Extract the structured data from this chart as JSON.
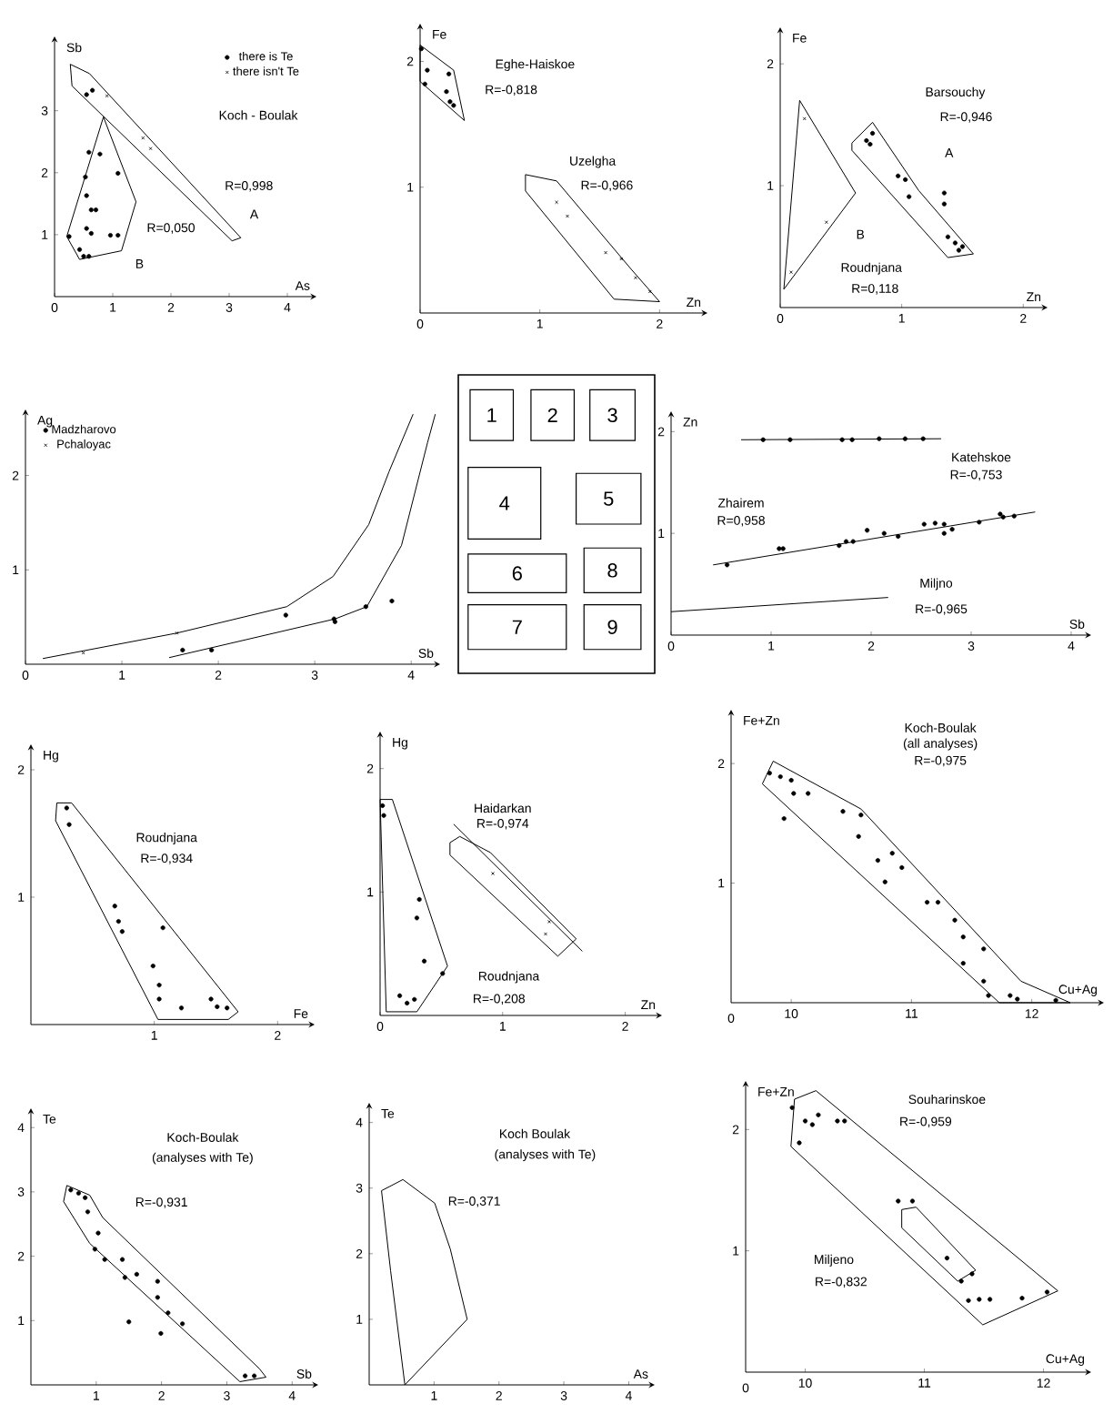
{
  "chart_data": [
    {
      "type": "scatter",
      "xlabel": "As",
      "ylabel": "Sb",
      "xlim": [
        0,
        4.5
      ],
      "ylim": [
        0,
        4.2
      ],
      "xticks": [
        0,
        1,
        2,
        3,
        4
      ],
      "yticks": [
        1,
        2,
        3
      ],
      "legend": "top right",
      "annotations": [
        "Koch - Boulak",
        "R=0,998",
        "R=0,050",
        "A",
        "B"
      ],
      "series": [
        {
          "type": "scatter",
          "name": "there is Te",
          "marker": "circle",
          "color": "#000000",
          "x": [
            0.55,
            0.65,
            0.59,
            0.78,
            0.53,
            1.09,
            0.55,
            0.63,
            0.71,
            0.55,
            0.63,
            0.25,
            0.43,
            0.5,
            0.59,
            0.96,
            1.09
          ],
          "values": [
            3.26,
            3.33,
            2.33,
            2.3,
            1.93,
            1.99,
            1.63,
            1.4,
            1.4,
            1.1,
            1.02,
            0.97,
            0.76,
            0.65,
            0.65,
            0.99,
            0.99
          ]
        },
        {
          "type": "scatter",
          "name": "there isn't Te",
          "marker": "cross",
          "color": "#000000",
          "x": [
            0.9,
            1.52,
            1.65
          ],
          "values": [
            3.24,
            2.56,
            2.39
          ]
        },
        {
          "type": "line",
          "color": "#000000",
          "x": [
            0.27,
            0.6,
            3.2
          ],
          "values": [
            3.75,
            3.6,
            0.95
          ]
        },
        {
          "type": "line",
          "color": "#000000",
          "x": [
            0.27,
            0.3,
            3.05,
            3.2
          ],
          "values": [
            3.75,
            3.4,
            0.9,
            0.95
          ]
        },
        {
          "type": "line",
          "color": "#000000",
          "x": [
            0.21,
            0.84,
            1.4
          ],
          "values": [
            0.97,
            2.9,
            1.53
          ]
        },
        {
          "type": "line",
          "color": "#000000",
          "x": [
            0.21,
            0.43,
            1.15,
            1.4
          ],
          "values": [
            0.97,
            0.6,
            0.74,
            1.53
          ]
        }
      ]
    },
    {
      "type": "scatter",
      "xlabel": "Zn",
      "ylabel": "Fe",
      "xlim": [
        0,
        2.4
      ],
      "ylim": [
        0,
        2.3
      ],
      "xticks": [
        0,
        1,
        2
      ],
      "yticks": [
        1,
        2
      ],
      "annotations": [
        "Eghe-Haiskoe",
        "R=-0,818",
        "Uzelgha",
        "R=-0,966"
      ],
      "series": [
        {
          "type": "scatter",
          "marker": "circle",
          "color": "#000000",
          "x": [
            0.01,
            0.06,
            0.04,
            0.22,
            0.25,
            0.28,
            0.24
          ],
          "values": [
            2.1,
            1.93,
            1.82,
            1.76,
            1.68,
            1.65,
            1.9
          ]
        },
        {
          "type": "scatter",
          "marker": "cross",
          "color": "#000000",
          "x": [
            1.14,
            1.23,
            1.55,
            1.68,
            1.8,
            1.92
          ],
          "values": [
            0.88,
            0.77,
            0.48,
            0.43,
            0.28,
            0.17
          ]
        },
        {
          "type": "line",
          "color": "#000000",
          "x": [
            0,
            0.28,
            0.37
          ],
          "values": [
            2.13,
            1.93,
            1.53
          ]
        },
        {
          "type": "line",
          "color": "#000000",
          "x": [
            0,
            0,
            0.37
          ],
          "values": [
            2.13,
            1.84,
            1.53
          ]
        },
        {
          "type": "line",
          "color": "#000000",
          "x": [
            0.88,
            1.14,
            1.77,
            2.0
          ],
          "values": [
            1.1,
            1.05,
            0.34,
            0.09
          ]
        },
        {
          "type": "line",
          "color": "#000000",
          "x": [
            0.88,
            0.88,
            1.62,
            2.0
          ],
          "values": [
            1.1,
            0.97,
            0.11,
            0.09
          ]
        }
      ]
    },
    {
      "type": "scatter",
      "xlabel": "Zn",
      "ylabel": "Fe",
      "xlim": [
        0,
        2.2
      ],
      "ylim": [
        0,
        2.3
      ],
      "xticks": [
        0,
        1,
        2
      ],
      "yticks": [
        1,
        2
      ],
      "annotations": [
        "Barsouchy",
        "R=-0,946",
        "A",
        "B",
        "Roudnjana",
        "R=0,118"
      ],
      "series": [
        {
          "type": "scatter",
          "marker": "circle",
          "color": "#000000",
          "x": [
            0.71,
            0.74,
            0.76,
            0.97,
            1.03,
            1.06,
            1.35,
            1.35,
            1.38,
            1.44,
            1.5,
            1.47
          ],
          "values": [
            1.37,
            1.34,
            1.43,
            1.08,
            1.05,
            0.91,
            0.94,
            0.85,
            0.58,
            0.53,
            0.5,
            0.47
          ]
        },
        {
          "type": "scatter",
          "marker": "cross",
          "color": "#000000",
          "x": [
            0.38,
            0.09,
            0.2
          ],
          "values": [
            0.7,
            0.29,
            1.55
          ]
        },
        {
          "type": "line",
          "color": "#000000",
          "x": [
            0.59,
            0.76,
            1.14,
            1.59
          ],
          "values": [
            1.35,
            1.52,
            0.96,
            0.44
          ]
        },
        {
          "type": "line",
          "color": "#000000",
          "x": [
            0.59,
            0.59,
            1.38,
            1.59
          ],
          "values": [
            1.35,
            1.29,
            0.41,
            0.44
          ]
        },
        {
          "type": "line",
          "color": "#000000",
          "x": [
            0.03,
            0.16,
            0.62
          ],
          "values": [
            0.15,
            1.7,
            0.94
          ]
        },
        {
          "type": "line",
          "color": "#000000",
          "x": [
            0.03,
            0.62
          ],
          "values": [
            0.15,
            0.94
          ]
        }
      ]
    },
    {
      "type": "scatter",
      "xlabel": "Sb",
      "ylabel": "Ag",
      "xlim": [
        0,
        4.3
      ],
      "ylim": [
        0,
        2.7
      ],
      "xticks": [
        0,
        1,
        2,
        3,
        4
      ],
      "yticks": [
        1,
        2
      ],
      "legend": "top left",
      "series": [
        {
          "type": "scatter",
          "name": "Madzharovo",
          "marker": "circle",
          "color": "#000000",
          "x": [
            1.63,
            1.93,
            2.7,
            3.2,
            3.21,
            3.53,
            3.8
          ],
          "values": [
            0.15,
            0.15,
            0.52,
            0.48,
            0.45,
            0.61,
            0.67
          ]
        },
        {
          "type": "scatter",
          "name": "Pchaloyac",
          "marker": "cross",
          "color": "#000000",
          "x": [
            0.6,
            1.57
          ],
          "values": [
            0.12,
            0.33
          ]
        },
        {
          "type": "line",
          "color": "#000000",
          "x": [
            0.18,
            1.57,
            2.71,
            3.19,
            3.56,
            3.77,
            4.02
          ],
          "values": [
            0.06,
            0.33,
            0.61,
            0.93,
            1.48,
            2.04,
            2.65
          ]
        },
        {
          "type": "line",
          "color": "#000000",
          "x": [
            1.49,
            3.21,
            3.54,
            3.9,
            4.17,
            4.25
          ],
          "values": [
            0.07,
            0.48,
            0.61,
            1.26,
            2.35,
            2.65
          ]
        }
      ]
    },
    {
      "type": "other",
      "annotations": [
        "1",
        "2",
        "3",
        "4",
        "5",
        "6",
        "8",
        "7",
        "9"
      ]
    },
    {
      "type": "scatter",
      "xlabel": "Sb",
      "ylabel": "Zn",
      "xlim": [
        0,
        4.2
      ],
      "ylim": [
        0,
        2.2
      ],
      "xticks": [
        0,
        1,
        2,
        3,
        4
      ],
      "yticks": [
        1,
        2
      ],
      "annotations": [
        "Katehskoe",
        "R=-0,753",
        "Zhairem",
        "R=0,958",
        "Miljno",
        "R=-0,965"
      ],
      "series": [
        {
          "type": "scatter",
          "marker": "circle",
          "color": "#000000",
          "x": [
            0.92,
            1.19,
            1.71,
            1.81,
            2.08,
            2.34,
            2.52
          ],
          "values": [
            1.92,
            1.92,
            1.92,
            1.92,
            1.93,
            1.93,
            1.93
          ]
        },
        {
          "type": "line",
          "color": "#000000",
          "x": [
            0.7,
            2.7
          ],
          "values": [
            1.92,
            1.93
          ]
        },
        {
          "type": "scatter",
          "marker": "circle",
          "color": "#000000",
          "x": [
            0.56,
            1.08,
            1.12,
            1.68,
            1.75,
            1.82,
            1.96,
            2.13,
            2.27,
            2.53,
            2.64,
            2.73,
            2.73,
            2.81,
            3.08,
            3.29,
            3.32,
            3.43
          ],
          "values": [
            0.69,
            0.85,
            0.85,
            0.88,
            0.92,
            0.92,
            1.03,
            1.0,
            0.97,
            1.09,
            1.1,
            1.09,
            1.0,
            1.04,
            1.11,
            1.19,
            1.16,
            1.17
          ]
        },
        {
          "type": "line",
          "color": "#000000",
          "x": [
            0.42,
            3.64
          ],
          "values": [
            0.69,
            1.21
          ]
        },
        {
          "type": "line",
          "color": "#000000",
          "x": [
            0,
            2.17
          ],
          "values": [
            0.23,
            0.37
          ]
        }
      ]
    },
    {
      "type": "scatter",
      "xlabel": "Fe",
      "ylabel": "Hg",
      "xlim": [
        0,
        2.3
      ],
      "ylim": [
        0,
        2.2
      ],
      "xticks": [
        1,
        2
      ],
      "yticks": [
        1,
        2
      ],
      "annotations": [
        "Roudnjana",
        "R=-0,934"
      ],
      "series": [
        {
          "type": "scatter",
          "marker": "circle",
          "color": "#000000",
          "x": [
            0.29,
            0.31,
            0.68,
            0.71,
            1.07,
            0.99,
            1.04,
            1.04,
            1.22,
            1.46,
            1.51,
            1.59,
            0.74
          ],
          "values": [
            1.7,
            1.57,
            0.93,
            0.81,
            0.76,
            0.46,
            0.31,
            0.2,
            0.13,
            0.2,
            0.14,
            0.13,
            0.73
          ]
        },
        {
          "type": "line",
          "color": "#000000",
          "x": [
            0.2,
            0.21,
            0.33,
            1.68
          ],
          "values": [
            1.6,
            1.74,
            1.74,
            0.1
          ]
        },
        {
          "type": "line",
          "color": "#000000",
          "x": [
            0.2,
            1.03,
            1.6,
            1.68
          ],
          "values": [
            1.6,
            0.04,
            0.04,
            0.1
          ]
        }
      ]
    },
    {
      "type": "scatter",
      "xlabel": "Zn",
      "ylabel": "Hg",
      "xlim": [
        0,
        2.3
      ],
      "ylim": [
        0,
        2.3
      ],
      "xticks": [
        0,
        1,
        2
      ],
      "yticks": [
        1,
        2
      ],
      "annotations": [
        "Haidarkan",
        "R=-0,974",
        "Roudnjana",
        "R=-0,208"
      ],
      "series": [
        {
          "type": "scatter",
          "marker": "circle",
          "color": "#000000",
          "x": [
            0.02,
            0.03,
            0.32,
            0.3,
            0.36,
            0.16,
            0.22,
            0.28,
            0.51
          ],
          "values": [
            1.7,
            1.62,
            0.94,
            0.79,
            0.44,
            0.16,
            0.1,
            0.13,
            0.34
          ]
        },
        {
          "type": "scatter",
          "marker": "cross",
          "color": "#000000",
          "x": [
            0.92,
            1.38,
            1.35
          ],
          "values": [
            1.15,
            0.76,
            0.66
          ]
        },
        {
          "type": "line",
          "color": "#000000",
          "x": [
            0,
            0.1,
            0.55
          ],
          "values": [
            1.75,
            1.75,
            0.4
          ]
        },
        {
          "type": "line",
          "color": "#000000",
          "x": [
            0,
            0.05,
            0.3,
            0.55
          ],
          "values": [
            1.75,
            0.03,
            0.03,
            0.4
          ]
        },
        {
          "type": "line",
          "color": "#000000",
          "x": [
            0.57,
            0.65,
            0.9,
            1.6
          ],
          "values": [
            1.4,
            1.45,
            1.32,
            0.62
          ]
        },
        {
          "type": "line",
          "color": "#000000",
          "x": [
            0.57,
            0.57,
            1.45,
            1.6
          ],
          "values": [
            1.4,
            1.3,
            0.48,
            0.62
          ]
        },
        {
          "type": "line",
          "color": "#000000",
          "x": [
            0.6,
            1.65
          ],
          "values": [
            1.55,
            0.52
          ]
        }
      ]
    },
    {
      "type": "scatter",
      "xlabel": "Cu+Ag",
      "ylabel": "Fe+Zn",
      "xlim": [
        9.5,
        12.6
      ],
      "ylim": [
        0,
        2.45
      ],
      "xticks": [
        10,
        11,
        12
      ],
      "yticks": [
        1,
        2
      ],
      "annotations": [
        "Koch-Boulak",
        "(all analyses)",
        "R=-0,975",
        "0"
      ],
      "series": [
        {
          "type": "scatter",
          "marker": "circle",
          "color": "#000000",
          "x": [
            9.82,
            9.91,
            10.0,
            10.02,
            10.14,
            9.94,
            10.43,
            10.58,
            10.56,
            10.72,
            10.84,
            10.92,
            10.78,
            11.13,
            11.22,
            11.36,
            11.43,
            11.6,
            11.43,
            11.6,
            11.64,
            11.82,
            11.88,
            12.2
          ],
          "values": [
            1.92,
            1.89,
            1.86,
            1.75,
            1.75,
            1.54,
            1.6,
            1.57,
            1.39,
            1.19,
            1.25,
            1.13,
            1.01,
            0.84,
            0.84,
            0.69,
            0.55,
            0.45,
            0.33,
            0.18,
            0.06,
            0.06,
            0.03,
            0.02
          ]
        },
        {
          "type": "line",
          "color": "#000000",
          "x": [
            9.76,
            9.85,
            10.58,
            11.91,
            12.32
          ],
          "values": [
            1.83,
            2.02,
            1.62,
            0.18,
            0
          ]
        },
        {
          "type": "line",
          "color": "#000000",
          "x": [
            9.76,
            11.73,
            12.32
          ],
          "values": [
            1.83,
            0,
            0
          ]
        }
      ]
    },
    {
      "type": "scatter",
      "xlabel": "Sb",
      "ylabel": "Te",
      "xlim": [
        0,
        4.4
      ],
      "ylim": [
        0,
        4.3
      ],
      "xticks": [
        1,
        2,
        3,
        4
      ],
      "yticks": [
        1,
        2,
        3,
        4
      ],
      "annotations": [
        "Koch-Boulak",
        "(analyses with Te)",
        "R=-0,931"
      ],
      "series": [
        {
          "type": "scatter",
          "marker": "circle",
          "color": "#000000",
          "x": [
            0.61,
            0.73,
            0.83,
            0.87,
            1.03,
            0.98,
            1.13,
            1.4,
            1.44,
            1.62,
            1.94,
            1.94,
            2.1,
            2.32,
            1.99,
            1.5,
            3.28,
            3.42
          ],
          "values": [
            3.03,
            2.98,
            2.91,
            2.69,
            2.36,
            2.11,
            1.95,
            1.95,
            1.67,
            1.72,
            1.61,
            1.36,
            1.12,
            0.95,
            0.8,
            0.98,
            0.14,
            0.14
          ]
        },
        {
          "type": "line",
          "color": "#000000",
          "x": [
            0.5,
            0.55,
            0.9,
            1.1,
            3.5,
            3.6
          ],
          "values": [
            2.85,
            3.1,
            2.95,
            2.6,
            0.25,
            0.12
          ]
        },
        {
          "type": "line",
          "color": "#000000",
          "x": [
            0.5,
            0.9,
            3.2,
            3.6
          ],
          "values": [
            2.85,
            2.2,
            0.05,
            0.12
          ]
        }
      ]
    },
    {
      "type": "scatter",
      "xlabel": "As",
      "ylabel": "Te",
      "xlim": [
        0,
        4.4
      ],
      "ylim": [
        0,
        4.3
      ],
      "xticks": [
        1,
        2,
        3,
        4
      ],
      "yticks": [
        1,
        2,
        3,
        4
      ],
      "annotations": [
        "Koch Boulak",
        "(analyses with Te)",
        "R=-0,371"
      ],
      "series": [
        {
          "type": "line",
          "color": "#000000",
          "x": [
            0.19,
            0.52,
            1.01,
            1.25,
            1.51
          ],
          "values": [
            2.96,
            3.13,
            2.77,
            2.07,
            1.0
          ]
        },
        {
          "type": "line",
          "color": "#000000",
          "x": [
            0.19,
            0.33,
            0.55,
            1.51
          ],
          "values": [
            2.96,
            1.74,
            0,
            1.0
          ]
        }
      ]
    },
    {
      "type": "scatter",
      "xlabel": "Cu+Ag",
      "ylabel": "Fe+Zn",
      "xlim": [
        9.5,
        12.4
      ],
      "ylim": [
        0,
        2.4
      ],
      "xticks": [
        10,
        11,
        12
      ],
      "yticks": [
        1,
        2
      ],
      "annotations": [
        "Souharinskoe",
        "R=-0,959",
        "Miljeno",
        "R=-0,832",
        "0"
      ],
      "series": [
        {
          "type": "scatter",
          "marker": "circle",
          "color": "#000000",
          "x": [
            9.89,
            10.0,
            10.06,
            10.11,
            10.27,
            10.33,
            9.95,
            10.78,
            10.9,
            11.19,
            11.31,
            11.4,
            11.37,
            11.46,
            11.55,
            11.82,
            12.03
          ],
          "values": [
            2.18,
            2.07,
            2.04,
            2.12,
            2.07,
            2.07,
            1.89,
            1.41,
            1.41,
            0.94,
            0.75,
            0.81,
            0.59,
            0.6,
            0.6,
            0.61,
            0.66
          ]
        },
        {
          "type": "line",
          "color": "#000000",
          "x": [
            9.88,
            9.91,
            10.09,
            12.12
          ],
          "values": [
            1.86,
            2.25,
            2.32,
            0.67
          ]
        },
        {
          "type": "line",
          "color": "#000000",
          "x": [
            9.88,
            11.49,
            12.12
          ],
          "values": [
            1.86,
            0.39,
            0.67
          ]
        },
        {
          "type": "line",
          "color": "#000000",
          "x": [
            10.81,
            10.93,
            11.43
          ],
          "values": [
            1.34,
            1.36,
            0.84
          ]
        },
        {
          "type": "line",
          "color": "#000000",
          "x": [
            10.81,
            10.81,
            11.28,
            11.43
          ],
          "values": [
            1.34,
            1.19,
            0.75,
            0.84
          ]
        }
      ]
    }
  ]
}
